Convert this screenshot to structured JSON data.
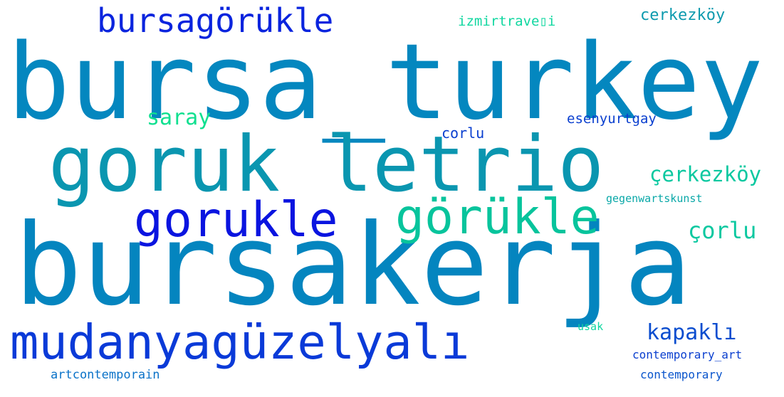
{
  "words": [
    {
      "id": "w1",
      "text": "bursa_turkey",
      "color": "#0487BF"
    },
    {
      "id": "w2",
      "text": "bursakerja",
      "color": "#0485BF"
    },
    {
      "id": "w3",
      "text": "goruk letrio",
      "color": "#0A96B0"
    },
    {
      "id": "w4",
      "text": "gorukle",
      "color": "#0A14E0"
    },
    {
      "id": "w5",
      "text": "görükle",
      "color": "#07C49C"
    },
    {
      "id": "w6",
      "text": "mudanyagüzelyalı",
      "color": "#0A3AD8"
    },
    {
      "id": "w7",
      "text": "bursagörükle",
      "color": "#0A24DE"
    },
    {
      "id": "w8",
      "text": "çerkezköy",
      "color": "#0AC8A0"
    },
    {
      "id": "w9",
      "text": "çorlu",
      "color": "#0AC8A0"
    },
    {
      "id": "w10",
      "text": "kapaklı",
      "color": "#0A4DCF"
    },
    {
      "id": "w11",
      "text": "saray",
      "color": "#10E090"
    },
    {
      "id": "w12",
      "text": "cerkezköy",
      "color": "#0D9AAE"
    },
    {
      "id": "w13",
      "text": "izmirtrave▯i",
      "color": "#10D7A0"
    },
    {
      "id": "w14",
      "text": "esenyurtgay",
      "color": "#0A3FCF"
    },
    {
      "id": "w15",
      "text": "corlu",
      "color": "#0A3FD0"
    },
    {
      "id": "w16",
      "text": "gegenwartskunst",
      "color": "#0AA8A8"
    },
    {
      "id": "w17",
      "text": "usak",
      "color": "#10D6A0"
    },
    {
      "id": "w18",
      "text": "contemporary_art",
      "color": "#0A3FCF"
    },
    {
      "id": "w19",
      "text": "artcontemporain",
      "color": "#0A72C8"
    },
    {
      "id": "w20",
      "text": "contemporary",
      "color": "#0A55CC"
    }
  ]
}
